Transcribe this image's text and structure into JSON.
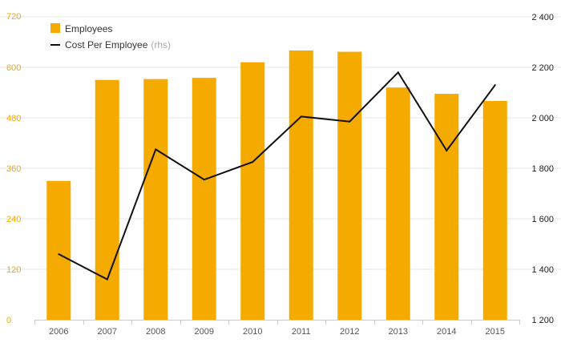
{
  "chart_data": {
    "type": "bar",
    "categories": [
      "2006",
      "2007",
      "2008",
      "2009",
      "2010",
      "2011",
      "2012",
      "2013",
      "2014",
      "2015"
    ],
    "series": [
      {
        "name": "Employees",
        "type": "bar",
        "axis": "left",
        "color": "#f5aa00",
        "values": [
          330,
          570,
          572,
          575,
          612,
          640,
          637,
          552,
          537,
          520
        ]
      },
      {
        "name": "Cost Per Employee",
        "name_suffix": "(rhs)",
        "type": "line",
        "axis": "right",
        "color": "#111111",
        "values": [
          1460,
          1360,
          1875,
          1755,
          1825,
          2005,
          1985,
          2180,
          1870,
          2130
        ]
      }
    ],
    "y_left": {
      "ylim": [
        0,
        720
      ],
      "ticks": [
        "0",
        "120",
        "240",
        "360",
        "480",
        "600",
        "720"
      ],
      "color": "#f5a800"
    },
    "y_right": {
      "ylim": [
        1200,
        2400
      ],
      "ticks": [
        "1 200",
        "1 400",
        "1 600",
        "1 800",
        "2 000",
        "2 200",
        "2 400"
      ],
      "color": "#222222"
    },
    "grid": true,
    "legend_position": "top-left"
  }
}
